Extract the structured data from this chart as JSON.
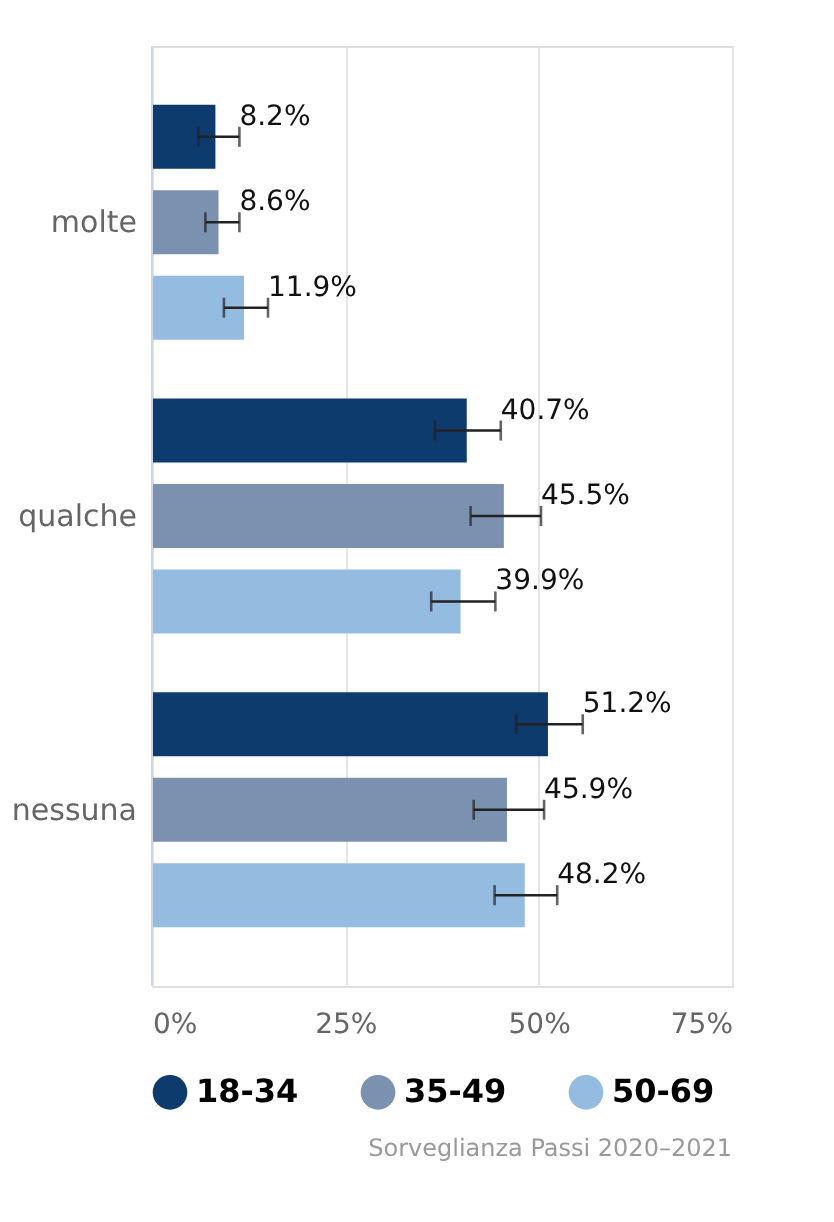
{
  "chart_data": {
    "type": "bar",
    "orientation": "horizontal",
    "categories": [
      "molte",
      "qualche",
      "nessuna"
    ],
    "series": [
      {
        "name": "18-34",
        "color": "#0d3b6e",
        "values": [
          8.2,
          40.7,
          51.2
        ],
        "errors": [
          [
            6.0,
            11.3
          ],
          [
            36.6,
            45.1
          ],
          [
            47.1,
            55.7
          ]
        ],
        "value_labels": [
          "8.2%",
          "40.7%",
          "51.2%"
        ]
      },
      {
        "name": "35-49",
        "color": "#7a91b0",
        "values": [
          8.6,
          45.5,
          45.9
        ],
        "errors": [
          [
            6.9,
            11.3
          ],
          [
            41.2,
            50.3
          ],
          [
            41.6,
            50.7
          ]
        ],
        "value_labels": [
          "8.6%",
          "45.5%",
          "45.9%"
        ]
      },
      {
        "name": "50-69",
        "color": "#94bce0",
        "values": [
          11.9,
          39.9,
          48.2
        ],
        "errors": [
          [
            9.3,
            15.0
          ],
          [
            36.1,
            44.4
          ],
          [
            44.3,
            52.4
          ]
        ],
        "value_labels": [
          "11.9%",
          "39.9%",
          "48.2%"
        ]
      }
    ],
    "xlim": [
      0,
      75
    ],
    "xticks": [
      {
        "value": 0,
        "label": "0%"
      },
      {
        "value": 25,
        "label": "25%"
      },
      {
        "value": 50,
        "label": "50%"
      },
      {
        "value": 75,
        "label": "75%"
      }
    ],
    "grid": "x",
    "legend": "bottom",
    "annotations": [
      "Sorveglianza Passi 2020–2021"
    ]
  }
}
